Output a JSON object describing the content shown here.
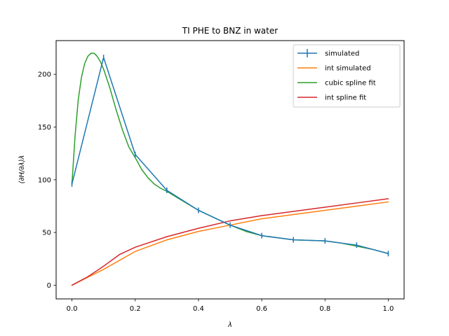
{
  "chart_data": {
    "type": "line",
    "title": "TI PHE to BNZ in water",
    "xlabel": "λ",
    "ylabel": "⟨∂H/∂λ⟩λ",
    "xlim": [
      -0.05,
      1.05
    ],
    "ylim": [
      -13,
      232
    ],
    "xticks": [
      0.0,
      0.2,
      0.4,
      0.6,
      0.8,
      1.0
    ],
    "xtick_labels": [
      "0.0",
      "0.2",
      "0.4",
      "0.6",
      "0.8",
      "1.0"
    ],
    "yticks": [
      0,
      50,
      100,
      150,
      200
    ],
    "ytick_labels": [
      "0",
      "50",
      "100",
      "150",
      "200"
    ],
    "grid": false,
    "legend_position": "top-right",
    "series": [
      {
        "name": "simulated",
        "color": "#1f77b4",
        "marker": "errorbar",
        "x": [
          0.0,
          0.1,
          0.2,
          0.3,
          0.4,
          0.5,
          0.6,
          0.7,
          0.8,
          0.9,
          1.0
        ],
        "y": [
          96,
          216,
          124,
          90,
          71,
          57,
          47,
          43,
          42,
          38,
          30
        ]
      },
      {
        "name": "int simulated",
        "color": "#ff7f0e",
        "marker": "line",
        "x": [
          0.0,
          0.1,
          0.2,
          0.3,
          0.4,
          0.5,
          0.6,
          0.7,
          0.8,
          0.9,
          1.0
        ],
        "y": [
          0,
          15,
          32,
          43,
          51,
          57,
          63,
          67,
          71,
          75,
          79
        ]
      },
      {
        "name": "cubic spline fit",
        "color": "#2ca02c",
        "marker": "line",
        "x": [
          0.0,
          0.01,
          0.02,
          0.03,
          0.04,
          0.05,
          0.06,
          0.07,
          0.08,
          0.09,
          0.1,
          0.12,
          0.14,
          0.16,
          0.18,
          0.2,
          0.22,
          0.24,
          0.26,
          0.28,
          0.3,
          0.35,
          0.4,
          0.45,
          0.5,
          0.55,
          0.6,
          0.65,
          0.7,
          0.75,
          0.8,
          0.85,
          0.9,
          0.95,
          1.0
        ],
        "y": [
          96,
          142,
          176,
          197,
          210,
          217,
          220,
          220,
          217,
          212,
          205,
          187,
          166,
          147,
          131,
          121,
          110,
          102,
          96,
          92,
          89,
          80,
          71,
          64,
          57,
          51,
          47,
          45,
          43,
          42.5,
          42,
          40,
          37,
          34,
          30
        ]
      },
      {
        "name": "int spline fit",
        "color": "#d62728",
        "marker": "line",
        "x": [
          0.0,
          0.05,
          0.1,
          0.15,
          0.2,
          0.3,
          0.4,
          0.5,
          0.6,
          0.7,
          0.8,
          0.9,
          1.0
        ],
        "y": [
          0,
          8,
          18,
          29,
          36,
          46,
          54,
          61,
          66,
          70,
          74,
          78,
          82
        ]
      }
    ]
  }
}
